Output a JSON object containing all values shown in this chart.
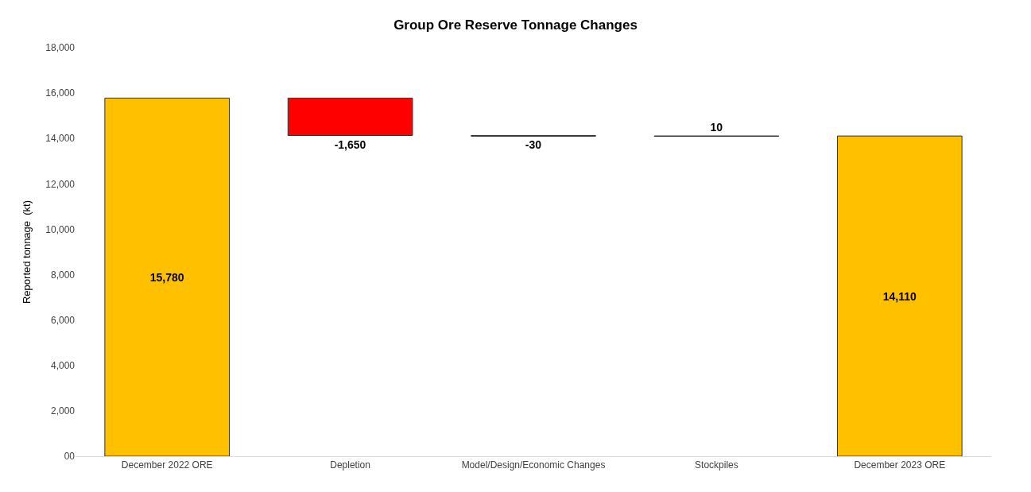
{
  "chart_data": {
    "type": "bar",
    "title": "Group Ore Reserve Tonnage Changes",
    "ylabel": "Reported tonnage  (kt)",
    "categories": [
      "December 2022 ORE",
      "Depletion",
      "Model/Design/Economic Changes",
      "Stockpiles",
      "December 2023 ORE"
    ],
    "values": [
      15780,
      -1650,
      -30,
      10,
      14110
    ],
    "base": [
      0,
      15780,
      14130,
      14100,
      0
    ],
    "colors": [
      "#ffc000",
      "#ff0000",
      "#000000",
      "#000000",
      "#ffc000"
    ],
    "value_labels": [
      "15,780",
      "-1,650",
      "-30",
      "10",
      "14,110"
    ],
    "ylim": [
      0,
      18000
    ],
    "yticks": [
      {
        "value": 0,
        "label": "00"
      },
      {
        "value": 2000,
        "label": "2,000"
      },
      {
        "value": 4000,
        "label": "4,000"
      },
      {
        "value": 6000,
        "label": "6,000"
      },
      {
        "value": 8000,
        "label": "8,000"
      },
      {
        "value": 10000,
        "label": "10,000"
      },
      {
        "value": 12000,
        "label": "12,000"
      },
      {
        "value": 14000,
        "label": "14,000"
      },
      {
        "value": 16000,
        "label": "16,000"
      },
      {
        "value": 18000,
        "label": "18,000"
      }
    ],
    "legend": false
  }
}
